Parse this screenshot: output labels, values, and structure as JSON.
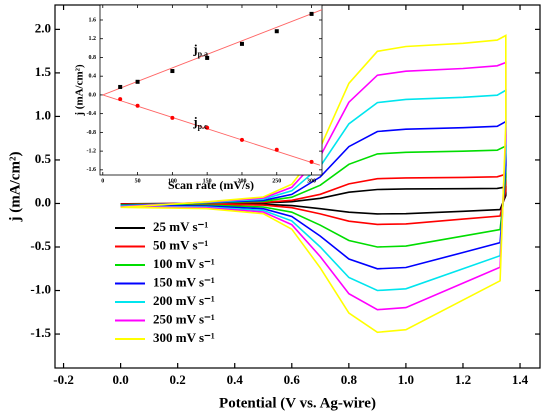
{
  "chart_data": [
    {
      "type": "line",
      "xlabel": "Potential (V vs. Ag-wire)",
      "ylabel": "j (mA/cm²)",
      "x": [
        0,
        0.3,
        0.5,
        0.6,
        0.7,
        0.8,
        0.9,
        1.0,
        1.2,
        1.32,
        1.35,
        1.35,
        1.33,
        1.2,
        1.0,
        0.9,
        0.8,
        0.7,
        0.6,
        0.5,
        0.3,
        0
      ],
      "series": [
        {
          "name": "25   mV s⁻¹",
          "color": "#000000",
          "values": [
            -0.004,
            0.002,
            0.007,
            0.02,
            0.06,
            0.13,
            0.16,
            0.167,
            0.17,
            0.173,
            0.19,
            0.09,
            -0.07,
            -0.09,
            -0.118,
            -0.12,
            -0.1,
            -0.06,
            -0.024,
            -0.01,
            -0.005,
            -0.004
          ]
        },
        {
          "name": "50   mV s⁻¹",
          "color": "#ff0000",
          "values": [
            -0.007,
            0.003,
            0.012,
            0.036,
            0.105,
            0.225,
            0.285,
            0.294,
            0.3,
            0.306,
            0.336,
            0.15,
            -0.144,
            -0.18,
            -0.235,
            -0.24,
            -0.204,
            -0.12,
            -0.048,
            -0.019,
            -0.01,
            -0.007
          ]
        },
        {
          "name": "100 mV s⁻¹",
          "color": "#00dd00",
          "values": [
            -0.015,
            0.006,
            0.024,
            0.072,
            0.21,
            0.45,
            0.57,
            0.588,
            0.6,
            0.612,
            0.66,
            0.3,
            -0.3,
            -0.375,
            -0.49,
            -0.5,
            -0.425,
            -0.25,
            -0.1,
            -0.04,
            -0.02,
            -0.015
          ]
        },
        {
          "name": "150 mV s⁻¹",
          "color": "#0000ff",
          "values": [
            -0.023,
            0.009,
            0.035,
            0.104,
            0.305,
            0.653,
            0.827,
            0.853,
            0.87,
            0.887,
            0.94,
            0.435,
            -0.45,
            -0.563,
            -0.735,
            -0.75,
            -0.638,
            -0.375,
            -0.15,
            -0.06,
            -0.03,
            -0.023
          ]
        },
        {
          "name": "200 mV s⁻¹",
          "color": "#00e5ee",
          "values": [
            -0.03,
            0.012,
            0.049,
            0.146,
            0.427,
            0.915,
            1.159,
            1.196,
            1.22,
            1.244,
            1.3,
            0.61,
            -0.6,
            -0.75,
            -0.98,
            -1.0,
            -0.85,
            -0.5,
            -0.2,
            -0.08,
            -0.04,
            -0.03
          ]
        },
        {
          "name": "250 mV s⁻¹",
          "color": "#ff00ff",
          "values": [
            -0.037,
            0.016,
            0.062,
            0.186,
            0.543,
            1.163,
            1.473,
            1.519,
            1.55,
            1.581,
            1.62,
            0.775,
            -0.732,
            -0.915,
            -1.196,
            -1.22,
            -1.037,
            -0.61,
            -0.244,
            -0.098,
            -0.049,
            -0.037
          ]
        },
        {
          "name": "300 mV s⁻¹",
          "color": "#ffff00",
          "values": [
            -0.044,
            0.018,
            0.074,
            0.221,
            0.644,
            1.38,
            1.748,
            1.803,
            1.84,
            1.877,
            1.93,
            0.92,
            -0.888,
            -1.11,
            -1.45,
            -1.48,
            -1.258,
            -0.74,
            -0.296,
            -0.118,
            -0.059,
            -0.044
          ]
        }
      ],
      "xlim": [
        -0.23,
        1.47
      ],
      "ylim": [
        -1.89,
        2.28
      ],
      "xticks": [
        -0.2,
        {
          "value": 0,
          "label": "0.0"
        },
        0.2,
        0.4,
        0.6,
        0.8,
        {
          "value": 1,
          "label": "1.0"
        },
        1.2,
        1.4
      ],
      "yticks": [
        -1.5,
        {
          "value": -1,
          "label": "-1.0"
        },
        -0.5,
        {
          "value": 0,
          "label": "0.0"
        },
        0.5,
        {
          "value": 1,
          "label": "1.0"
        },
        1.5,
        {
          "value": 2,
          "label": "2.0"
        }
      ],
      "legend": "lower left"
    },
    {
      "type": "scatter",
      "xlabel": "Scan rate (mV/s)",
      "ylabel": "j (mA/cm²)",
      "series": [
        {
          "x": [
            25,
            50,
            100,
            150,
            200,
            250,
            300
          ],
          "values": [
            0.17,
            0.28,
            0.51,
            0.79,
            1.09,
            1.36,
            1.73
          ],
          "color": "#000000",
          "marker": "square"
        },
        {
          "x": [
            25,
            50,
            100,
            150,
            200,
            250,
            300
          ],
          "values": [
            -0.09,
            -0.23,
            -0.49,
            -0.7,
            -0.96,
            -1.17,
            -1.43
          ],
          "color": "#ff0000",
          "marker": "circle"
        }
      ],
      "fit_lines": [
        {
          "x": [
            0,
            315
          ],
          "values": [
            0,
            1.82
          ],
          "color": "#ff6666"
        },
        {
          "x": [
            0,
            312
          ],
          "values": [
            0,
            -1.5
          ],
          "color": "#ff6666"
        }
      ],
      "annotations": [
        {
          "text": "j",
          "sub": "p.a",
          "x": 130,
          "y": 0.95
        },
        {
          "text": "j",
          "sub": "p.c",
          "x": 130,
          "y": -0.6
        }
      ],
      "xlim": [
        -4,
        315
      ],
      "ylim": [
        -1.71,
        1.92
      ],
      "xticks": [
        0,
        50,
        100,
        150,
        200,
        250,
        300
      ],
      "yticks": [
        -1.6,
        -1.2,
        -0.8,
        -0.4,
        {
          "value": 0,
          "label": "0.0"
        },
        0.4,
        0.8,
        1.2,
        1.6
      ]
    }
  ]
}
